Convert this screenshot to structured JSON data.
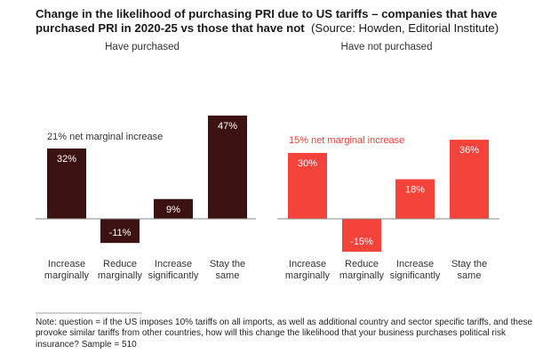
{
  "title_bold": "Change in the likelihood of purchasing PRI due to US tariffs – companies that have purchased PRI in 2020-25 vs those that have not",
  "title_source": "(Source: Howden, Editorial Institute)",
  "note": "Note: question = if the US imposes 10% tariffs on all imports, as well as additional country and sector specific tariffs, and these provoke similar tariffs from other countries, how will this change the likelihood that your business purchases political risk insurance? Sample = 510",
  "chart_data": [
    {
      "type": "bar",
      "title": "Have purchased",
      "categories": [
        "Increase marginally",
        "Reduce marginally",
        "Increase significantly",
        "Stay the same"
      ],
      "category_lines": [
        [
          "Increase",
          "marginally"
        ],
        [
          "Reduce",
          "marginally"
        ],
        [
          "Increase",
          "significantly"
        ],
        [
          "Stay the",
          "same"
        ]
      ],
      "values": [
        32,
        -11,
        9,
        47
      ],
      "value_labels": [
        "32%",
        "-11%",
        "9%",
        "47%"
      ],
      "annotation": "21% net marginal increase",
      "color": "#3d1212",
      "annotation_color": "#333333",
      "xlabel": "",
      "ylabel": "",
      "ylim": [
        -15,
        47
      ],
      "grid": false
    },
    {
      "type": "bar",
      "title": "Have not purchased",
      "categories": [
        "Increase marginally",
        "Reduce marginally",
        "Increase significantly",
        "Stay the same"
      ],
      "category_lines": [
        [
          "Increase",
          "marginally"
        ],
        [
          "Reduce",
          "marginally"
        ],
        [
          "Increase",
          "significantly"
        ],
        [
          "Stay the",
          "same"
        ]
      ],
      "values": [
        30,
        -15,
        18,
        36
      ],
      "value_labels": [
        "30%",
        "-15%",
        "18%",
        "36%"
      ],
      "annotation": "15% net marginal increase",
      "color": "#f4433b",
      "annotation_color": "#e0453e",
      "xlabel": "",
      "ylabel": "",
      "ylim": [
        -15,
        47
      ],
      "grid": false
    }
  ]
}
